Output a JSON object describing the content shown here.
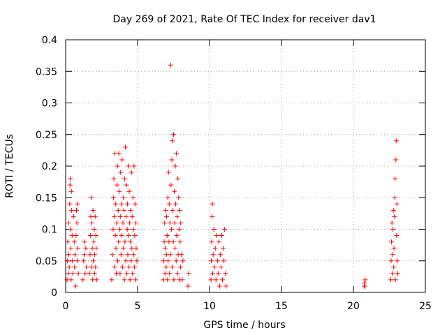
{
  "chart_data": {
    "type": "scatter",
    "title": "Day 269 of 2021, Rate Of TEC Index for receiver dav1",
    "xlabel": "GPS time / hours",
    "ylabel": "ROTI / TECUs",
    "xlim": [
      0,
      25
    ],
    "ylim": [
      0,
      0.4
    ],
    "xticks": [
      0,
      5,
      10,
      15,
      20,
      25
    ],
    "xtick_labels": [
      "0",
      "5",
      "10",
      "15",
      "20",
      "25"
    ],
    "yticks": [
      0,
      0.05,
      0.1,
      0.15,
      0.2,
      0.25,
      0.3,
      0.35,
      0.4
    ],
    "ytick_labels": [
      "0",
      "0.05",
      "0.1",
      "0.15",
      "0.2",
      "0.25",
      "0.3",
      "0.35",
      "0.4"
    ],
    "grid": true,
    "marker": "+",
    "color": "#ff0000",
    "series": [
      {
        "name": "ROTI",
        "points": [
          [
            0.1,
            0.02
          ],
          [
            0.12,
            0.05
          ],
          [
            0.15,
            0.08
          ],
          [
            0.18,
            0.03
          ],
          [
            0.2,
            0.11
          ],
          [
            0.22,
            0.06
          ],
          [
            0.25,
            0.04
          ],
          [
            0.28,
            0.14
          ],
          [
            0.3,
            0.17
          ],
          [
            0.32,
            0.18
          ],
          [
            0.34,
            0.1
          ],
          [
            0.36,
            0.07
          ],
          [
            0.38,
            0.02
          ],
          [
            0.4,
            0.16
          ],
          [
            0.42,
            0.13
          ],
          [
            0.45,
            0.09
          ],
          [
            0.48,
            0.05
          ],
          [
            0.5,
            0.03
          ],
          [
            0.55,
            0.12
          ],
          [
            0.6,
            0.08
          ],
          [
            0.62,
            0.04
          ],
          [
            0.65,
            0.06
          ],
          [
            0.7,
            0.01
          ],
          [
            0.72,
            0.09
          ],
          [
            0.75,
            0.13
          ],
          [
            0.78,
            0.11
          ],
          [
            0.8,
            0.05
          ],
          [
            0.82,
            0.14
          ],
          [
            0.85,
            0.07
          ],
          [
            0.88,
            0.03
          ],
          [
            1.2,
            0.02
          ],
          [
            1.25,
            0.05
          ],
          [
            1.3,
            0.08
          ],
          [
            1.35,
            0.03
          ],
          [
            1.4,
            0.07
          ],
          [
            1.45,
            0.04
          ],
          [
            1.3,
            0.06
          ],
          [
            1.65,
            0.03
          ],
          [
            1.7,
            0.06
          ],
          [
            1.72,
            0.09
          ],
          [
            1.75,
            0.12
          ],
          [
            1.78,
            0.15
          ],
          [
            1.8,
            0.04
          ],
          [
            1.82,
            0.11
          ],
          [
            1.85,
            0.07
          ],
          [
            1.88,
            0.02
          ],
          [
            1.9,
            0.13
          ],
          [
            1.92,
            0.05
          ],
          [
            1.95,
            0.08
          ],
          [
            1.98,
            0.1
          ],
          [
            2.0,
            0.03
          ],
          [
            2.02,
            0.06
          ],
          [
            2.05,
            0.12
          ],
          [
            2.08,
            0.04
          ],
          [
            2.1,
            0.09
          ],
          [
            2.12,
            0.07
          ],
          [
            2.15,
            0.02
          ],
          [
            3.2,
            0.02
          ],
          [
            3.25,
            0.06
          ],
          [
            3.3,
            0.1
          ],
          [
            3.32,
            0.15
          ],
          [
            3.35,
            0.18
          ],
          [
            3.38,
            0.12
          ],
          [
            3.4,
            0.04
          ],
          [
            3.42,
            0.22
          ],
          [
            3.45,
            0.09
          ],
          [
            3.48,
            0.14
          ],
          [
            3.5,
            0.07
          ],
          [
            3.52,
            0.03
          ],
          [
            3.55,
            0.11
          ],
          [
            3.58,
            0.17
          ],
          [
            3.6,
            0.2
          ],
          [
            3.62,
            0.05
          ],
          [
            3.65,
            0.13
          ],
          [
            3.68,
            0.08
          ],
          [
            3.7,
            0.22
          ],
          [
            3.72,
            0.16
          ],
          [
            3.75,
            0.1
          ],
          [
            3.78,
            0.03
          ],
          [
            3.8,
            0.12
          ],
          [
            3.82,
            0.19
          ],
          [
            3.85,
            0.06
          ],
          [
            3.88,
            0.14
          ],
          [
            3.9,
            0.09
          ],
          [
            3.92,
            0.21
          ],
          [
            3.95,
            0.04
          ],
          [
            3.98,
            0.11
          ],
          [
            4.0,
            0.07
          ],
          [
            4.02,
            0.15
          ],
          [
            4.05,
            0.13
          ],
          [
            4.08,
            0.02
          ],
          [
            4.1,
            0.18
          ],
          [
            4.12,
            0.08
          ],
          [
            4.15,
            0.23
          ],
          [
            4.18,
            0.05
          ],
          [
            4.2,
            0.12
          ],
          [
            4.22,
            0.17
          ],
          [
            4.25,
            0.03
          ],
          [
            4.28,
            0.1
          ],
          [
            4.3,
            0.14
          ],
          [
            4.32,
            0.06
          ],
          [
            4.35,
            0.2
          ],
          [
            4.38,
            0.09
          ],
          [
            4.4,
            0.04
          ],
          [
            4.42,
            0.16
          ],
          [
            4.45,
            0.11
          ],
          [
            4.48,
            0.02
          ],
          [
            4.5,
            0.08
          ],
          [
            4.52,
            0.13
          ],
          [
            4.55,
            0.05
          ],
          [
            4.58,
            0.19
          ],
          [
            4.6,
            0.07
          ],
          [
            4.62,
            0.12
          ],
          [
            4.65,
            0.03
          ],
          [
            4.68,
            0.15
          ],
          [
            4.7,
            0.1
          ],
          [
            4.72,
            0.06
          ],
          [
            4.75,
            0.2
          ],
          [
            4.78,
            0.04
          ],
          [
            4.8,
            0.09
          ],
          [
            4.82,
            0.14
          ],
          [
            4.85,
            0.02
          ],
          [
            4.88,
            0.11
          ],
          [
            4.9,
            0.07
          ],
          [
            4.95,
            0.05
          ],
          [
            6.8,
            0.02
          ],
          [
            6.82,
            0.05
          ],
          [
            6.85,
            0.08
          ],
          [
            6.88,
            0.11
          ],
          [
            6.9,
            0.03
          ],
          [
            6.92,
            0.07
          ],
          [
            6.95,
            0.13
          ],
          [
            6.98,
            0.04
          ],
          [
            7.0,
            0.06
          ],
          [
            7.02,
            0.12
          ],
          [
            7.05,
            0.09
          ],
          [
            7.08,
            0.02
          ],
          [
            7.1,
            0.15
          ],
          [
            7.12,
            0.05
          ],
          [
            7.15,
            0.19
          ],
          [
            7.18,
            0.08
          ],
          [
            7.2,
            0.14
          ],
          [
            7.22,
            0.03
          ],
          [
            7.25,
            0.11
          ],
          [
            7.28,
            0.06
          ],
          [
            7.3,
            0.36
          ],
          [
            7.32,
            0.17
          ],
          [
            7.35,
            0.1
          ],
          [
            7.38,
            0.21
          ],
          [
            7.4,
            0.04
          ],
          [
            7.42,
            0.24
          ],
          [
            7.45,
            0.13
          ],
          [
            7.48,
            0.08
          ],
          [
            7.5,
            0.25
          ],
          [
            7.52,
            0.02
          ],
          [
            7.55,
            0.16
          ],
          [
            7.58,
            0.11
          ],
          [
            7.6,
            0.07
          ],
          [
            7.62,
            0.2
          ],
          [
            7.65,
            0.14
          ],
          [
            7.68,
            0.05
          ],
          [
            7.7,
            0.22
          ],
          [
            7.72,
            0.09
          ],
          [
            7.75,
            0.12
          ],
          [
            7.78,
            0.03
          ],
          [
            7.8,
            0.18
          ],
          [
            7.82,
            0.06
          ],
          [
            7.85,
            0.15
          ],
          [
            7.88,
            0.1
          ],
          [
            7.9,
            0.02
          ],
          [
            7.92,
            0.13
          ],
          [
            7.95,
            0.08
          ],
          [
            7.98,
            0.04
          ],
          [
            8.0,
            0.11
          ],
          [
            8.05,
            0.06
          ],
          [
            8.1,
            0.02
          ],
          [
            8.15,
            0.05
          ],
          [
            8.5,
            0.01
          ],
          [
            8.55,
            0.03
          ],
          [
            10.1,
            0.02
          ],
          [
            10.12,
            0.05
          ],
          [
            10.15,
            0.08
          ],
          [
            10.18,
            0.12
          ],
          [
            10.2,
            0.14
          ],
          [
            10.22,
            0.03
          ],
          [
            10.25,
            0.06
          ],
          [
            10.3,
            0.1
          ],
          [
            10.35,
            0.04
          ],
          [
            10.4,
            0.07
          ],
          [
            10.45,
            0.02
          ],
          [
            10.5,
            0.09
          ],
          [
            10.55,
            0.05
          ],
          [
            10.6,
            0.03
          ],
          [
            10.65,
            0.08
          ],
          [
            10.7,
            0.01
          ],
          [
            10.75,
            0.06
          ],
          [
            10.8,
            0.04
          ],
          [
            10.85,
            0.09
          ],
          [
            10.9,
            0.02
          ],
          [
            10.95,
            0.07
          ],
          [
            11.0,
            0.05
          ],
          [
            11.05,
            0.1
          ],
          [
            11.1,
            0.03
          ],
          [
            11.15,
            0.01
          ],
          [
            20.75,
            0.01
          ],
          [
            20.78,
            0.015
          ],
          [
            20.8,
            0.01
          ],
          [
            20.82,
            0.02
          ],
          [
            22.6,
            0.02
          ],
          [
            22.62,
            0.05
          ],
          [
            22.65,
            0.08
          ],
          [
            22.68,
            0.11
          ],
          [
            22.7,
            0.03
          ],
          [
            22.72,
            0.06
          ],
          [
            22.75,
            0.1
          ],
          [
            22.78,
            0.13
          ],
          [
            22.8,
            0.04
          ],
          [
            22.82,
            0.07
          ],
          [
            22.85,
            0.12
          ],
          [
            22.88,
            0.15
          ],
          [
            22.9,
            0.18
          ],
          [
            22.92,
            0.02
          ],
          [
            22.95,
            0.21
          ],
          [
            22.98,
            0.24
          ],
          [
            23.0,
            0.09
          ],
          [
            23.02,
            0.14
          ],
          [
            23.05,
            0.05
          ],
          [
            23.08,
            0.03
          ]
        ]
      }
    ]
  }
}
